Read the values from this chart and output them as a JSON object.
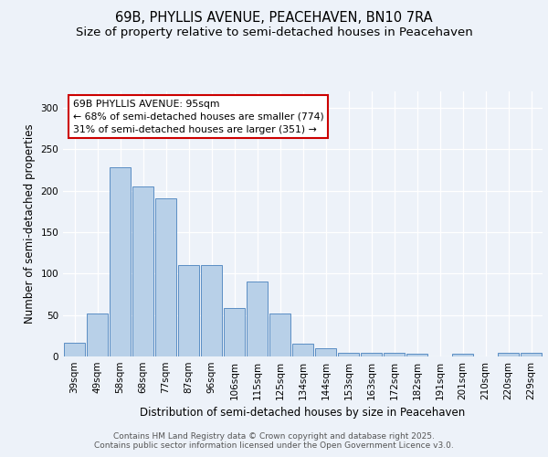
{
  "title": "69B, PHYLLIS AVENUE, PEACEHAVEN, BN10 7RA",
  "subtitle": "Size of property relative to semi-detached houses in Peacehaven",
  "xlabel": "Distribution of semi-detached houses by size in Peacehaven",
  "ylabel": "Number of semi-detached properties",
  "categories": [
    "39sqm",
    "49sqm",
    "58sqm",
    "68sqm",
    "77sqm",
    "87sqm",
    "96sqm",
    "106sqm",
    "115sqm",
    "125sqm",
    "134sqm",
    "144sqm",
    "153sqm",
    "163sqm",
    "172sqm",
    "182sqm",
    "191sqm",
    "201sqm",
    "210sqm",
    "220sqm",
    "229sqm"
  ],
  "values": [
    17,
    52,
    228,
    205,
    191,
    110,
    110,
    58,
    90,
    52,
    15,
    10,
    4,
    4,
    4,
    3,
    0,
    3,
    0,
    4,
    4
  ],
  "highlight_index": 6,
  "bar_color_normal": "#b8d0e8",
  "bar_edge_color": "#5b8ec4",
  "annotation_text": "69B PHYLLIS AVENUE: 95sqm\n← 68% of semi-detached houses are smaller (774)\n31% of semi-detached houses are larger (351) →",
  "annotation_box_color": "#ffffff",
  "annotation_box_edge": "#cc0000",
  "footer_text": "Contains HM Land Registry data © Crown copyright and database right 2025.\nContains public sector information licensed under the Open Government Licence v3.0.",
  "ylim": [
    0,
    320
  ],
  "yticks": [
    0,
    50,
    100,
    150,
    200,
    250,
    300
  ],
  "background_color": "#edf2f9",
  "grid_color": "#ffffff",
  "title_fontsize": 10.5,
  "subtitle_fontsize": 9.5,
  "axis_label_fontsize": 8.5,
  "tick_fontsize": 7.5,
  "footer_fontsize": 6.5
}
